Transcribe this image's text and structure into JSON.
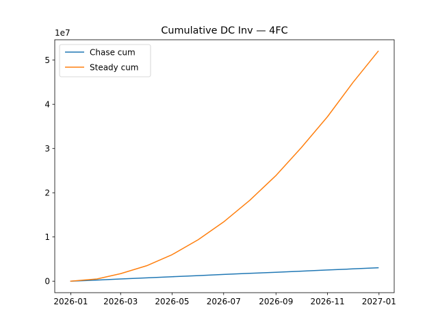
{
  "chart_data": {
    "type": "line",
    "title": "Cumulative DC Inv — 4FC",
    "xlabel": "",
    "ylabel": "",
    "y_offset_label": "1e7",
    "x_ticks": [
      "2026-01",
      "2026-03",
      "2026-05",
      "2026-07",
      "2026-09",
      "2026-11",
      "2027-01"
    ],
    "x_tick_dates": [
      "2026-01-01",
      "2026-03-01",
      "2026-05-01",
      "2026-07-01",
      "2026-09-01",
      "2026-11-01",
      "2027-01-01"
    ],
    "y_ticks": [
      0,
      1,
      2,
      3,
      4,
      5
    ],
    "y_tick_scale": 10000000,
    "xlim": [
      "2025-12-13",
      "2027-01-19"
    ],
    "ylim": [
      -2600000,
      54600000
    ],
    "grid": false,
    "legend": {
      "placement": "top-left"
    },
    "series": [
      {
        "name": "Chase cum",
        "color": "#1f77b4",
        "points": [
          [
            "2026-01-01",
            0
          ],
          [
            "2026-02-01",
            250000
          ],
          [
            "2026-03-01",
            500000
          ],
          [
            "2026-04-01",
            760000
          ],
          [
            "2026-05-01",
            1010000
          ],
          [
            "2026-06-01",
            1260000
          ],
          [
            "2026-07-01",
            1520000
          ],
          [
            "2026-08-01",
            1770000
          ],
          [
            "2026-09-01",
            2020000
          ],
          [
            "2026-10-01",
            2270000
          ],
          [
            "2026-11-01",
            2530000
          ],
          [
            "2026-12-01",
            2780000
          ],
          [
            "2026-12-31",
            3030000
          ]
        ]
      },
      {
        "name": "Steady cum",
        "color": "#ff7f0e",
        "points": [
          [
            "2026-01-01",
            0
          ],
          [
            "2026-02-01",
            500000
          ],
          [
            "2026-03-01",
            1700000
          ],
          [
            "2026-04-01",
            3500000
          ],
          [
            "2026-05-01",
            6000000
          ],
          [
            "2026-06-01",
            9400000
          ],
          [
            "2026-07-01",
            13400000
          ],
          [
            "2026-08-01",
            18300000
          ],
          [
            "2026-09-01",
            23900000
          ],
          [
            "2026-10-01",
            30200000
          ],
          [
            "2026-11-01",
            37200000
          ],
          [
            "2026-12-01",
            44900000
          ],
          [
            "2026-12-31",
            52000000
          ]
        ]
      }
    ]
  }
}
